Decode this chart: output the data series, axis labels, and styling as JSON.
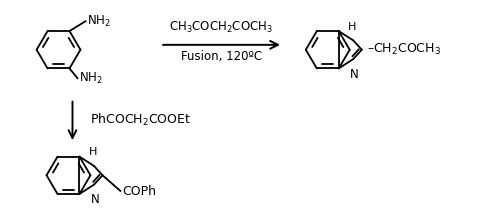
{
  "bg_color": "#ffffff",
  "text_color": "#000000",
  "reaction1_reagent": "CH$_3$COCH$_2$COCH$_3$",
  "reaction1_condition": "Fusion, 120ºC",
  "reaction2_reagent": "PhCOCH$_2$COOEt",
  "fig_width": 4.91,
  "fig_height": 2.1,
  "dpi": 100
}
